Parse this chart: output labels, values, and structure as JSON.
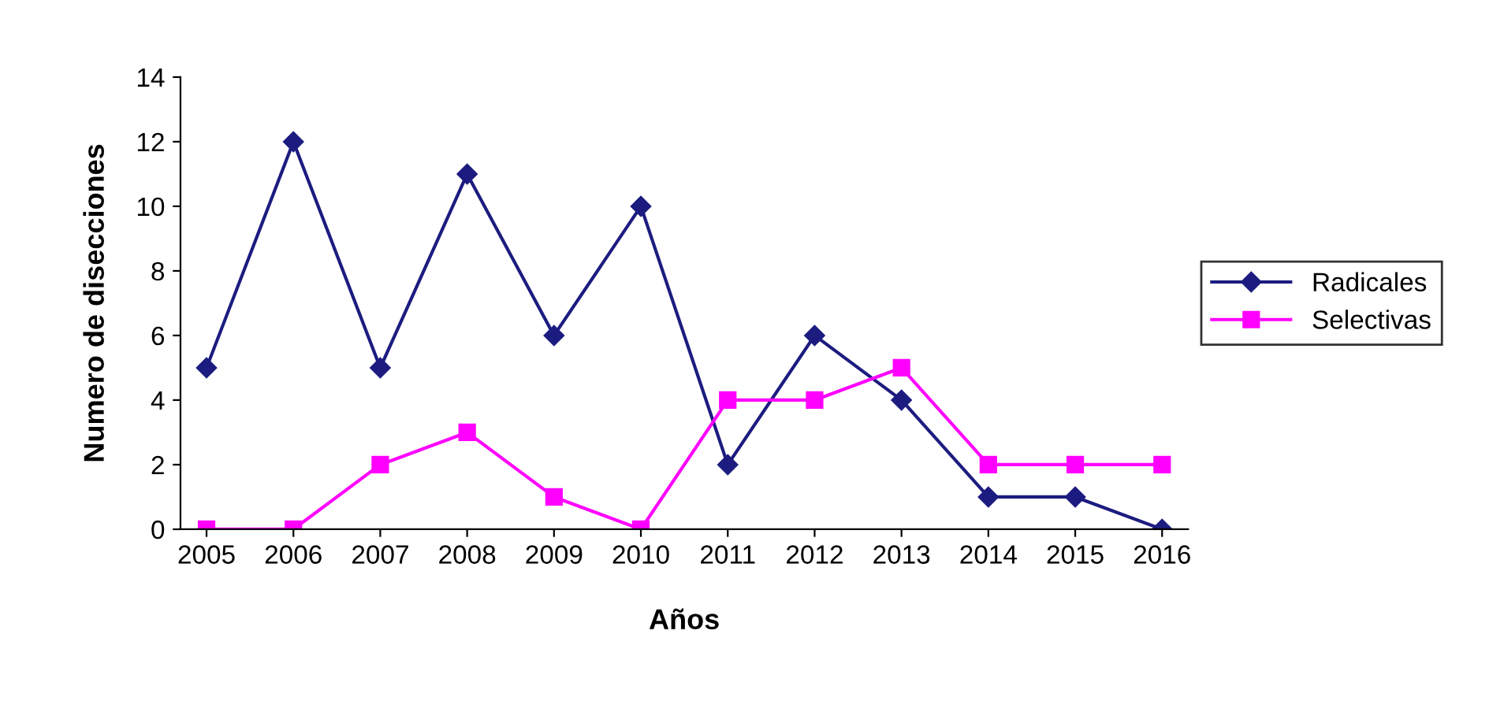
{
  "chart_data": {
    "type": "line",
    "xlabel": "Años",
    "ylabel": "Numero de disecciones",
    "categories": [
      "2005",
      "2006",
      "2007",
      "2008",
      "2009",
      "2010",
      "2011",
      "2012",
      "2013",
      "2014",
      "2015",
      "2016"
    ],
    "series": [
      {
        "name": "Radicales",
        "color": "#1c1c80",
        "marker": "diamond",
        "values": [
          5,
          12,
          5,
          11,
          6,
          10,
          2,
          6,
          4,
          1,
          1,
          0
        ]
      },
      {
        "name": "Selectivas",
        "color": "#ff00ff",
        "marker": "square",
        "values": [
          0,
          0,
          2,
          3,
          1,
          0,
          4,
          4,
          5,
          2,
          2,
          2
        ]
      }
    ],
    "ylim": [
      0,
      14
    ],
    "yticks": [
      0,
      2,
      4,
      6,
      8,
      10,
      12,
      14
    ],
    "grid": false,
    "legend": "right",
    "line_style": "solid"
  }
}
